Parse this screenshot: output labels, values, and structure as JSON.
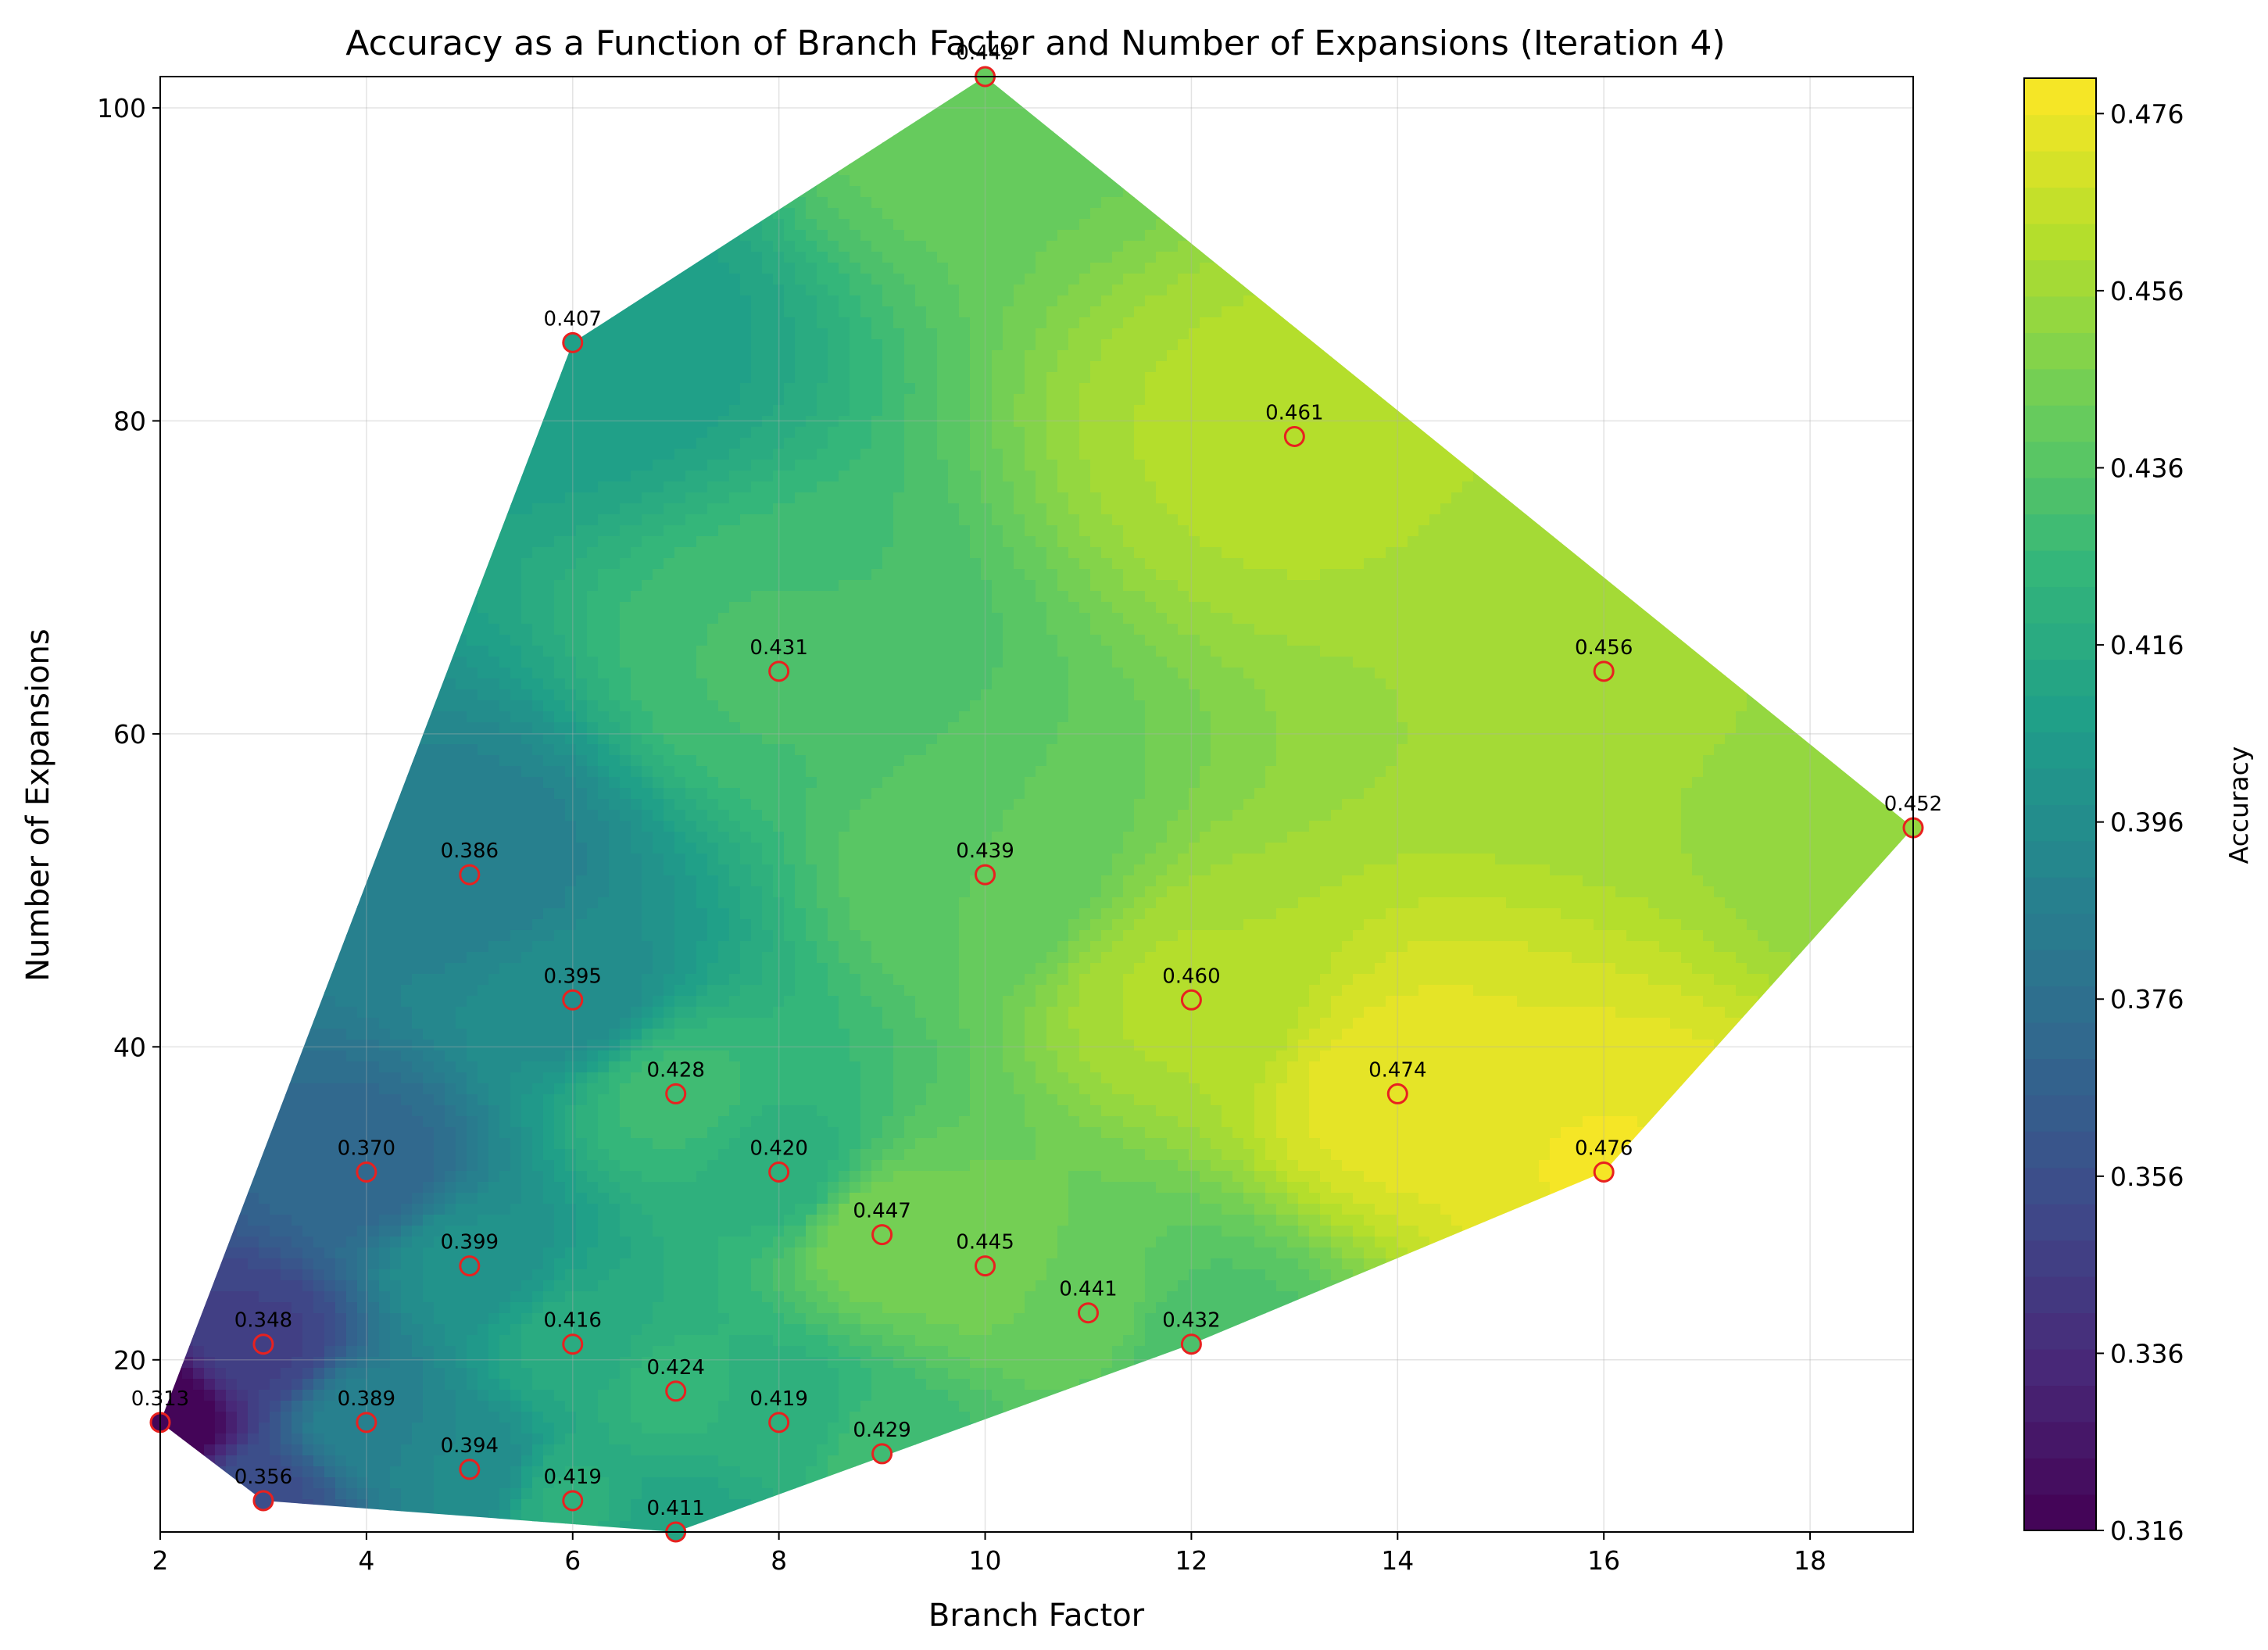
{
  "chart_data": {
    "type": "scatter",
    "subtype": "filled-contour-with-labeled-points",
    "title": "Accuracy as a Function of Branch Factor and Number of Expansions (Iteration 4)",
    "xlabel": "Branch Factor",
    "ylabel": "Number of Expansions",
    "xlim": [
      2,
      19
    ],
    "ylim": [
      9,
      102
    ],
    "xticks": [
      2,
      4,
      6,
      8,
      10,
      12,
      14,
      16,
      18
    ],
    "yticks": [
      20,
      40,
      60,
      80,
      100
    ],
    "grid": true,
    "colormap": "viridis",
    "marker_edge_color": "#e8211f",
    "colorbar": {
      "label": "Accuracy",
      "range": [
        0.316,
        0.48
      ],
      "ticks": [
        "0.316",
        "0.336",
        "0.356",
        "0.376",
        "0.396",
        "0.416",
        "0.436",
        "0.456",
        "0.476"
      ]
    },
    "points": [
      {
        "x": 2,
        "y": 16,
        "value": 0.313,
        "label": "0.313"
      },
      {
        "x": 3,
        "y": 11,
        "value": 0.356,
        "label": "0.356"
      },
      {
        "x": 3,
        "y": 21,
        "value": 0.348,
        "label": "0.348"
      },
      {
        "x": 4,
        "y": 16,
        "value": 0.389,
        "label": "0.389"
      },
      {
        "x": 4,
        "y": 32,
        "value": 0.37,
        "label": "0.370"
      },
      {
        "x": 5,
        "y": 13,
        "value": 0.394,
        "label": "0.394"
      },
      {
        "x": 5,
        "y": 26,
        "value": 0.399,
        "label": "0.399"
      },
      {
        "x": 5,
        "y": 51,
        "value": 0.386,
        "label": "0.386"
      },
      {
        "x": 6,
        "y": 11,
        "value": 0.419,
        "label": "0.419"
      },
      {
        "x": 6,
        "y": 21,
        "value": 0.416,
        "label": "0.416"
      },
      {
        "x": 6,
        "y": 43,
        "value": 0.395,
        "label": "0.395"
      },
      {
        "x": 6,
        "y": 85,
        "value": 0.407,
        "label": "0.407"
      },
      {
        "x": 7,
        "y": 9,
        "value": 0.411,
        "label": "0.411"
      },
      {
        "x": 7,
        "y": 18,
        "value": 0.424,
        "label": "0.424"
      },
      {
        "x": 7,
        "y": 37,
        "value": 0.428,
        "label": "0.428"
      },
      {
        "x": 8,
        "y": 16,
        "value": 0.419,
        "label": "0.419"
      },
      {
        "x": 8,
        "y": 32,
        "value": 0.42,
        "label": "0.420"
      },
      {
        "x": 8,
        "y": 64,
        "value": 0.431,
        "label": "0.431"
      },
      {
        "x": 9,
        "y": 14,
        "value": 0.429,
        "label": "0.429"
      },
      {
        "x": 9,
        "y": 28,
        "value": 0.447,
        "label": "0.447"
      },
      {
        "x": 10,
        "y": 26,
        "value": 0.445,
        "label": "0.445"
      },
      {
        "x": 10,
        "y": 51,
        "value": 0.439,
        "label": "0.439"
      },
      {
        "x": 10,
        "y": 102,
        "value": 0.442,
        "label": "0.442"
      },
      {
        "x": 11,
        "y": 23,
        "value": 0.441,
        "label": "0.441"
      },
      {
        "x": 12,
        "y": 21,
        "value": 0.432,
        "label": "0.432"
      },
      {
        "x": 12,
        "y": 43,
        "value": 0.46,
        "label": "0.460"
      },
      {
        "x": 13,
        "y": 79,
        "value": 0.461,
        "label": "0.461"
      },
      {
        "x": 14,
        "y": 37,
        "value": 0.474,
        "label": "0.474"
      },
      {
        "x": 16,
        "y": 32,
        "value": 0.476,
        "label": "0.476"
      },
      {
        "x": 16,
        "y": 64,
        "value": 0.456,
        "label": "0.456"
      },
      {
        "x": 19,
        "y": 54,
        "value": 0.452,
        "label": "0.452"
      }
    ],
    "convex_hull": [
      {
        "x": 2,
        "y": 16
      },
      {
        "x": 3,
        "y": 11
      },
      {
        "x": 7,
        "y": 9
      },
      {
        "x": 12,
        "y": 21
      },
      {
        "x": 16,
        "y": 32
      },
      {
        "x": 19,
        "y": 54
      },
      {
        "x": 10,
        "y": 102
      },
      {
        "x": 6,
        "y": 85
      }
    ]
  }
}
